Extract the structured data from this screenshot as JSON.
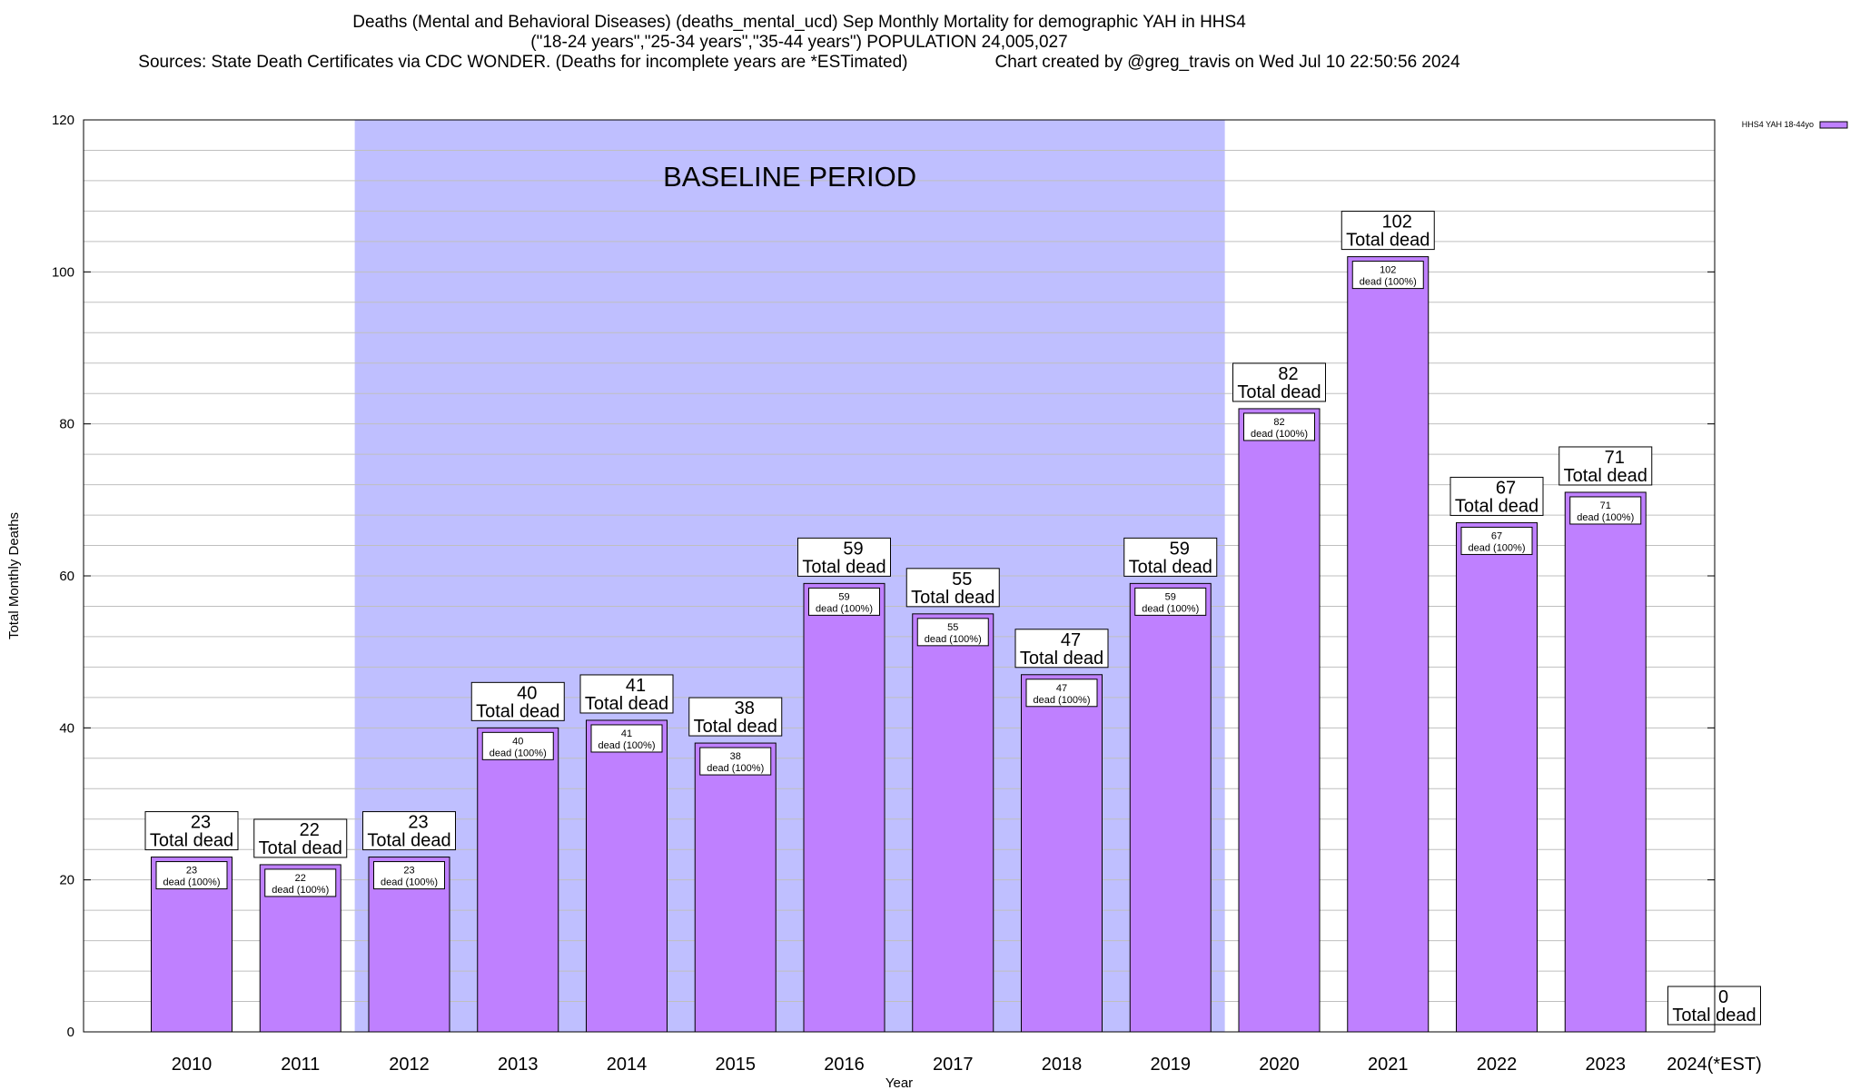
{
  "chart_data": {
    "type": "bar",
    "title": "Deaths (Mental and Behavioral Diseases) (deaths_mental_ucd) Sep Monthly Mortality for demographic YAH in HHS4",
    "subtitle": "(\"18-24 years\",\"25-34 years\",\"35-44 years\") POPULATION 24,005,027",
    "source_line": "Sources: State Death Certificates via CDC WONDER. (Deaths for incomplete years are *ESTimated)",
    "credit_line": "Chart created by @greg_travis on Wed Jul 10 22:50:56 2024",
    "xlabel": "Year",
    "ylabel": "Total Monthly Deaths",
    "ylim": [
      0,
      120
    ],
    "yticks": [
      0,
      20,
      40,
      60,
      80,
      100,
      120
    ],
    "grid": true,
    "legend_placement": "top-right",
    "baseline_label": "BASELINE PERIOD",
    "baseline_range": [
      "2012",
      "2019"
    ],
    "categories": [
      "2010",
      "2011",
      "2012",
      "2013",
      "2014",
      "2015",
      "2016",
      "2017",
      "2018",
      "2019",
      "2020",
      "2021",
      "2022",
      "2023",
      "2024(*EST)"
    ],
    "series": [
      {
        "name": "HHS4 YAH 18-44yo",
        "values": [
          23,
          22,
          23,
          40,
          41,
          38,
          59,
          55,
          47,
          59,
          82,
          102,
          67,
          71,
          0
        ],
        "color": "#bf80ff"
      }
    ],
    "top_label_suffix": "Total dead",
    "inner_label_suffix": "dead (100%)",
    "colors": {
      "bar": "#bf80ff",
      "baseline_band": "#bfbfff",
      "grid": "#bfbfbf",
      "axis": "#000000"
    }
  }
}
